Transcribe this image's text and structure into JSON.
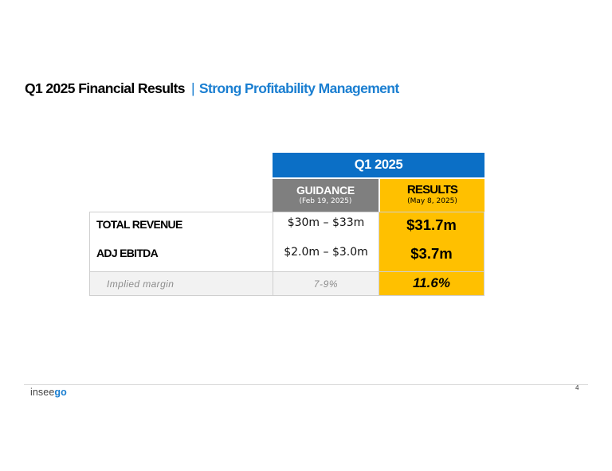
{
  "title": {
    "main": "Q1 2025 Financial Results",
    "separator": "|",
    "sub": "Strong Profitability Management"
  },
  "table": {
    "period_header": "Q1 2025",
    "guidance_header": {
      "label": "GUIDANCE",
      "date": "(Feb 19, 2025)"
    },
    "results_header": {
      "label": "RESULTS",
      "date": "(May 8, 2025)"
    },
    "rows": [
      {
        "label": "TOTAL REVENUE",
        "guidance": "$30m – $33m",
        "result": "$31.7m"
      },
      {
        "label": "ADJ EBITDA",
        "guidance": "$2.0m – $3.0m",
        "result": "$3.7m"
      }
    ],
    "implied": {
      "label": "Implied margin",
      "guidance": "7-9%",
      "result": "11.6%"
    }
  },
  "footer": {
    "logo_part1": "insee",
    "logo_part2": "go",
    "page_number": "4"
  },
  "colors": {
    "accent_blue": "#1b7fd1",
    "header_blue": "#0b6fc6",
    "guidance_gray": "#7f7f7f",
    "results_yellow": "#ffc000"
  }
}
